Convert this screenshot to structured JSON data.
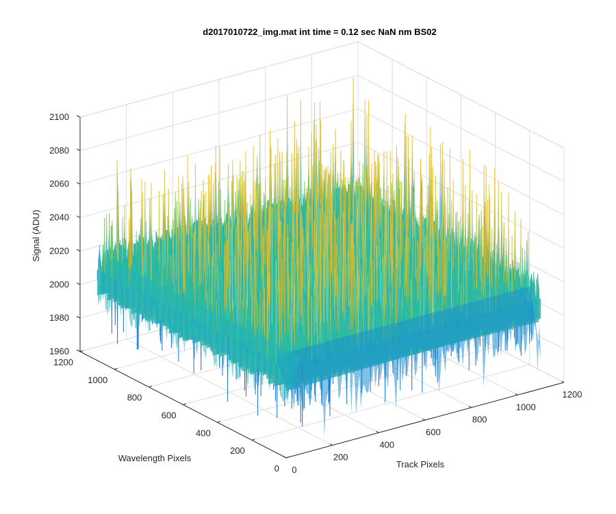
{
  "figure": {
    "background": "#ffffff"
  },
  "chart_data": {
    "type": "surface",
    "title": "d2017010722_img.mat int time = 0.12 sec  NaN nm BS02",
    "xlabel": "Track Pixels",
    "ylabel": "Wavelength Pixels",
    "zlabel": "Signal (ADU)",
    "xlim": [
      0,
      1200
    ],
    "ylim": [
      0,
      1200
    ],
    "zlim": [
      1960,
      2100
    ],
    "x_ticks": [
      "0",
      "200",
      "400",
      "600",
      "800",
      "1000",
      "1200"
    ],
    "y_ticks": [
      "0",
      "200",
      "400",
      "600",
      "800",
      "1000",
      "1200"
    ],
    "z_ticks": [
      "1960",
      "1980",
      "2000",
      "2020",
      "2040",
      "2060",
      "2080",
      "2100"
    ],
    "data_extent": {
      "x": [
        0,
        1100
      ],
      "y": [
        0,
        1100
      ]
    },
    "signal": {
      "mean": 2018,
      "noise_min": 1975,
      "noise_max": 2090
    },
    "colormap": [
      "#1a6fd6",
      "#11a7c4",
      "#2bbf9a",
      "#8cc95c",
      "#d9c33a",
      "#f2c230"
    ],
    "grid": true
  }
}
